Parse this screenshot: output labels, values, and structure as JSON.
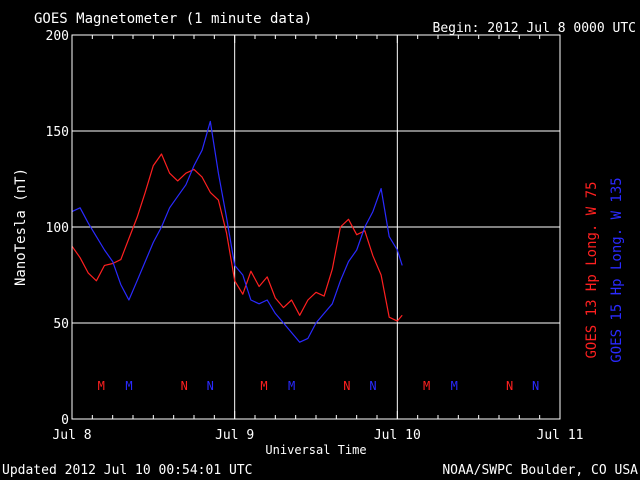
{
  "header": {
    "title": "GOES Magnetometer (1 minute data)",
    "begin": "Begin:  2012 Jul 8 0000 UTC"
  },
  "footer": {
    "updated": "Updated 2012 Jul 10 00:54:01 UTC",
    "source": "NOAA/SWPC Boulder, CO USA"
  },
  "colors": {
    "goes13": "#ff2020",
    "goes15": "#2a2aff",
    "axes": "#ffffff",
    "background": "#000000"
  },
  "chart_data": {
    "type": "line",
    "title": "GOES Magnetometer (1 minute data)",
    "xlabel": "Universal Time",
    "ylabel": "NanoTesla (nT)",
    "x_ticks": [
      "Jul 8",
      "Jul 9",
      "Jul 10",
      "Jul 11"
    ],
    "x_range_days": [
      0,
      3
    ],
    "ylim": [
      0,
      200
    ],
    "y_ticks": [
      0,
      50,
      100,
      150,
      200
    ],
    "grid": true,
    "legend_placement": "right",
    "series": [
      {
        "name": "GOES 13 Hp",
        "label": "GOES 13 Hp   Long. W 75",
        "color": "#ff2020",
        "x": [
          0.0,
          0.05,
          0.1,
          0.15,
          0.2,
          0.25,
          0.3,
          0.35,
          0.4,
          0.45,
          0.5,
          0.55,
          0.6,
          0.65,
          0.7,
          0.75,
          0.8,
          0.85,
          0.9,
          0.95,
          1.0,
          1.05,
          1.1,
          1.15,
          1.2,
          1.25,
          1.3,
          1.35,
          1.4,
          1.45,
          1.5,
          1.55,
          1.6,
          1.65,
          1.7,
          1.75,
          1.8,
          1.85,
          1.9,
          1.95,
          2.0,
          2.03
        ],
        "values": [
          90,
          84,
          76,
          72,
          80,
          81,
          83,
          94,
          105,
          118,
          132,
          138,
          128,
          124,
          128,
          130,
          126,
          118,
          114,
          97,
          72,
          65,
          77,
          69,
          74,
          63,
          58,
          62,
          54,
          62,
          66,
          64,
          78,
          100,
          104,
          96,
          98,
          85,
          75,
          53,
          51,
          54
        ]
      },
      {
        "name": "GOES 15 Hp",
        "label": "GOES 15 Hp   Long. W 135",
        "color": "#2a2aff",
        "x": [
          0.0,
          0.05,
          0.1,
          0.15,
          0.2,
          0.25,
          0.3,
          0.35,
          0.4,
          0.45,
          0.5,
          0.55,
          0.6,
          0.65,
          0.7,
          0.75,
          0.8,
          0.85,
          0.9,
          0.95,
          1.0,
          1.05,
          1.1,
          1.15,
          1.2,
          1.25,
          1.3,
          1.35,
          1.4,
          1.45,
          1.5,
          1.55,
          1.6,
          1.65,
          1.7,
          1.75,
          1.8,
          1.85,
          1.9,
          1.95,
          2.0,
          2.03
        ],
        "values": [
          108,
          110,
          102,
          95,
          88,
          82,
          70,
          62,
          72,
          82,
          92,
          100,
          110,
          116,
          122,
          132,
          140,
          155,
          128,
          105,
          80,
          75,
          62,
          60,
          62,
          55,
          50,
          45,
          40,
          42,
          50,
          55,
          60,
          72,
          82,
          88,
          100,
          108,
          120,
          95,
          88,
          80
        ]
      }
    ],
    "annotations": [
      {
        "text": "M",
        "x": 0.18,
        "color": "#ff2020"
      },
      {
        "text": "M",
        "x": 0.35,
        "color": "#2a2aff"
      },
      {
        "text": "N",
        "x": 0.69,
        "color": "#ff2020"
      },
      {
        "text": "N",
        "x": 0.85,
        "color": "#2a2aff"
      },
      {
        "text": "M",
        "x": 1.18,
        "color": "#ff2020"
      },
      {
        "text": "M",
        "x": 1.35,
        "color": "#2a2aff"
      },
      {
        "text": "N",
        "x": 1.69,
        "color": "#ff2020"
      },
      {
        "text": "N",
        "x": 1.85,
        "color": "#2a2aff"
      },
      {
        "text": "M",
        "x": 2.18,
        "color": "#ff2020"
      },
      {
        "text": "M",
        "x": 2.35,
        "color": "#2a2aff"
      },
      {
        "text": "N",
        "x": 2.69,
        "color": "#ff2020"
      },
      {
        "text": "N",
        "x": 2.85,
        "color": "#2a2aff"
      }
    ]
  }
}
